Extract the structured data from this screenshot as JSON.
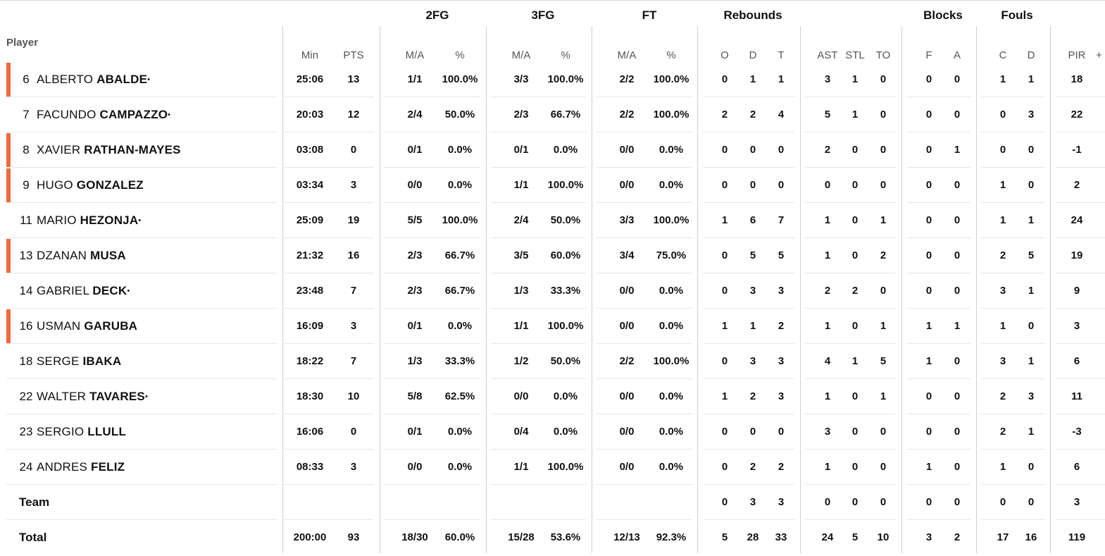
{
  "groups": {
    "fg2": "2FG",
    "fg3": "3FG",
    "ft": "FT",
    "reb": "Rebounds",
    "blk": "Blocks",
    "fouls": "Fouls"
  },
  "headers": {
    "player": "Player",
    "min": "Min",
    "pts": "PTS",
    "fg2_ma": "M/A",
    "fg2_pct": "%",
    "fg3_ma": "M/A",
    "fg3_pct": "%",
    "ft_ma": "M/A",
    "ft_pct": "%",
    "o": "O",
    "d": "D",
    "t": "T",
    "ast": "AST",
    "stl": "STL",
    "to": "TO",
    "bf": "F",
    "ba": "A",
    "fc": "C",
    "fd": "D",
    "pir": "PIR",
    "pm": "+"
  },
  "players": [
    {
      "num": "6",
      "first": "ALBERTO",
      "last": "ABALDE",
      "starter": true,
      "accent": true,
      "min": "25:06",
      "pts": "13",
      "fg2_ma": "1/1",
      "fg2_pct": "100.0%",
      "fg3_ma": "3/3",
      "fg3_pct": "100.0%",
      "ft_ma": "2/2",
      "ft_pct": "100.0%",
      "o": "0",
      "d": "1",
      "t": "1",
      "ast": "3",
      "stl": "1",
      "to": "0",
      "bf": "0",
      "ba": "0",
      "fc": "1",
      "fd": "1",
      "pir": "18"
    },
    {
      "num": "7",
      "first": "FACUNDO",
      "last": "CAMPAZZO",
      "starter": true,
      "accent": false,
      "min": "20:03",
      "pts": "12",
      "fg2_ma": "2/4",
      "fg2_pct": "50.0%",
      "fg3_ma": "2/3",
      "fg3_pct": "66.7%",
      "ft_ma": "2/2",
      "ft_pct": "100.0%",
      "o": "2",
      "d": "2",
      "t": "4",
      "ast": "5",
      "stl": "1",
      "to": "0",
      "bf": "0",
      "ba": "0",
      "fc": "0",
      "fd": "3",
      "pir": "22"
    },
    {
      "num": "8",
      "first": "XAVIER",
      "last": "RATHAN-MAYES",
      "starter": false,
      "accent": true,
      "min": "03:08",
      "pts": "0",
      "fg2_ma": "0/1",
      "fg2_pct": "0.0%",
      "fg3_ma": "0/1",
      "fg3_pct": "0.0%",
      "ft_ma": "0/0",
      "ft_pct": "0.0%",
      "o": "0",
      "d": "0",
      "t": "0",
      "ast": "2",
      "stl": "0",
      "to": "0",
      "bf": "0",
      "ba": "1",
      "fc": "0",
      "fd": "0",
      "pir": "-1"
    },
    {
      "num": "9",
      "first": "HUGO",
      "last": "GONZALEZ",
      "starter": false,
      "accent": true,
      "min": "03:34",
      "pts": "3",
      "fg2_ma": "0/0",
      "fg2_pct": "0.0%",
      "fg3_ma": "1/1",
      "fg3_pct": "100.0%",
      "ft_ma": "0/0",
      "ft_pct": "0.0%",
      "o": "0",
      "d": "0",
      "t": "0",
      "ast": "0",
      "stl": "0",
      "to": "0",
      "bf": "0",
      "ba": "0",
      "fc": "1",
      "fd": "0",
      "pir": "2"
    },
    {
      "num": "11",
      "first": "MARIO",
      "last": "HEZONJA",
      "starter": true,
      "accent": false,
      "min": "25:09",
      "pts": "19",
      "fg2_ma": "5/5",
      "fg2_pct": "100.0%",
      "fg3_ma": "2/4",
      "fg3_pct": "50.0%",
      "ft_ma": "3/3",
      "ft_pct": "100.0%",
      "o": "1",
      "d": "6",
      "t": "7",
      "ast": "1",
      "stl": "0",
      "to": "1",
      "bf": "0",
      "ba": "0",
      "fc": "1",
      "fd": "1",
      "pir": "24"
    },
    {
      "num": "13",
      "first": "DZANAN",
      "last": "MUSA",
      "starter": false,
      "accent": true,
      "min": "21:32",
      "pts": "16",
      "fg2_ma": "2/3",
      "fg2_pct": "66.7%",
      "fg3_ma": "3/5",
      "fg3_pct": "60.0%",
      "ft_ma": "3/4",
      "ft_pct": "75.0%",
      "o": "0",
      "d": "5",
      "t": "5",
      "ast": "1",
      "stl": "0",
      "to": "2",
      "bf": "0",
      "ba": "0",
      "fc": "2",
      "fd": "5",
      "pir": "19"
    },
    {
      "num": "14",
      "first": "GABRIEL",
      "last": "DECK",
      "starter": true,
      "accent": false,
      "min": "23:48",
      "pts": "7",
      "fg2_ma": "2/3",
      "fg2_pct": "66.7%",
      "fg3_ma": "1/3",
      "fg3_pct": "33.3%",
      "ft_ma": "0/0",
      "ft_pct": "0.0%",
      "o": "0",
      "d": "3",
      "t": "3",
      "ast": "2",
      "stl": "2",
      "to": "0",
      "bf": "0",
      "ba": "0",
      "fc": "3",
      "fd": "1",
      "pir": "9"
    },
    {
      "num": "16",
      "first": "USMAN",
      "last": "GARUBA",
      "starter": false,
      "accent": true,
      "min": "16:09",
      "pts": "3",
      "fg2_ma": "0/1",
      "fg2_pct": "0.0%",
      "fg3_ma": "1/1",
      "fg3_pct": "100.0%",
      "ft_ma": "0/0",
      "ft_pct": "0.0%",
      "o": "1",
      "d": "1",
      "t": "2",
      "ast": "1",
      "stl": "0",
      "to": "1",
      "bf": "1",
      "ba": "1",
      "fc": "1",
      "fd": "0",
      "pir": "3"
    },
    {
      "num": "18",
      "first": "SERGE",
      "last": "IBAKA",
      "starter": false,
      "accent": false,
      "min": "18:22",
      "pts": "7",
      "fg2_ma": "1/3",
      "fg2_pct": "33.3%",
      "fg3_ma": "1/2",
      "fg3_pct": "50.0%",
      "ft_ma": "2/2",
      "ft_pct": "100.0%",
      "o": "0",
      "d": "3",
      "t": "3",
      "ast": "4",
      "stl": "1",
      "to": "5",
      "bf": "1",
      "ba": "0",
      "fc": "3",
      "fd": "1",
      "pir": "6"
    },
    {
      "num": "22",
      "first": "WALTER",
      "last": "TAVARES",
      "starter": true,
      "accent": false,
      "min": "18:30",
      "pts": "10",
      "fg2_ma": "5/8",
      "fg2_pct": "62.5%",
      "fg3_ma": "0/0",
      "fg3_pct": "0.0%",
      "ft_ma": "0/0",
      "ft_pct": "0.0%",
      "o": "1",
      "d": "2",
      "t": "3",
      "ast": "1",
      "stl": "0",
      "to": "1",
      "bf": "0",
      "ba": "0",
      "fc": "2",
      "fd": "3",
      "pir": "11"
    },
    {
      "num": "23",
      "first": "SERGIO",
      "last": "LLULL",
      "starter": false,
      "accent": false,
      "min": "16:06",
      "pts": "0",
      "fg2_ma": "0/1",
      "fg2_pct": "0.0%",
      "fg3_ma": "0/4",
      "fg3_pct": "0.0%",
      "ft_ma": "0/0",
      "ft_pct": "0.0%",
      "o": "0",
      "d": "0",
      "t": "0",
      "ast": "3",
      "stl": "0",
      "to": "0",
      "bf": "0",
      "ba": "0",
      "fc": "2",
      "fd": "1",
      "pir": "-3"
    },
    {
      "num": "24",
      "first": "ANDRES",
      "last": "FELIZ",
      "starter": false,
      "accent": false,
      "min": "08:33",
      "pts": "3",
      "fg2_ma": "0/0",
      "fg2_pct": "0.0%",
      "fg3_ma": "1/1",
      "fg3_pct": "100.0%",
      "ft_ma": "0/0",
      "ft_pct": "0.0%",
      "o": "0",
      "d": "2",
      "t": "2",
      "ast": "1",
      "stl": "0",
      "to": "0",
      "bf": "1",
      "ba": "0",
      "fc": "1",
      "fd": "0",
      "pir": "6"
    }
  ],
  "team": {
    "label": "Team",
    "min": "",
    "pts": "",
    "fg2_ma": "",
    "fg2_pct": "",
    "fg3_ma": "",
    "fg3_pct": "",
    "ft_ma": "",
    "ft_pct": "",
    "o": "0",
    "d": "3",
    "t": "3",
    "ast": "0",
    "stl": "0",
    "to": "0",
    "bf": "0",
    "ba": "0",
    "fc": "0",
    "fd": "0",
    "pir": "3"
  },
  "total": {
    "label": "Total",
    "min": "200:00",
    "pts": "93",
    "fg2_ma": "18/30",
    "fg2_pct": "60.0%",
    "fg3_ma": "15/28",
    "fg3_pct": "53.6%",
    "ft_ma": "12/13",
    "ft_pct": "92.3%",
    "o": "5",
    "d": "28",
    "t": "33",
    "ast": "24",
    "stl": "5",
    "to": "10",
    "bf": "3",
    "ba": "2",
    "fc": "17",
    "fd": "16",
    "pir": "119"
  },
  "starter_mark": "•",
  "colors": {
    "accent": "#f06a3a",
    "grid": "#cfcfcf",
    "row_separator": "#e6e6e6"
  }
}
